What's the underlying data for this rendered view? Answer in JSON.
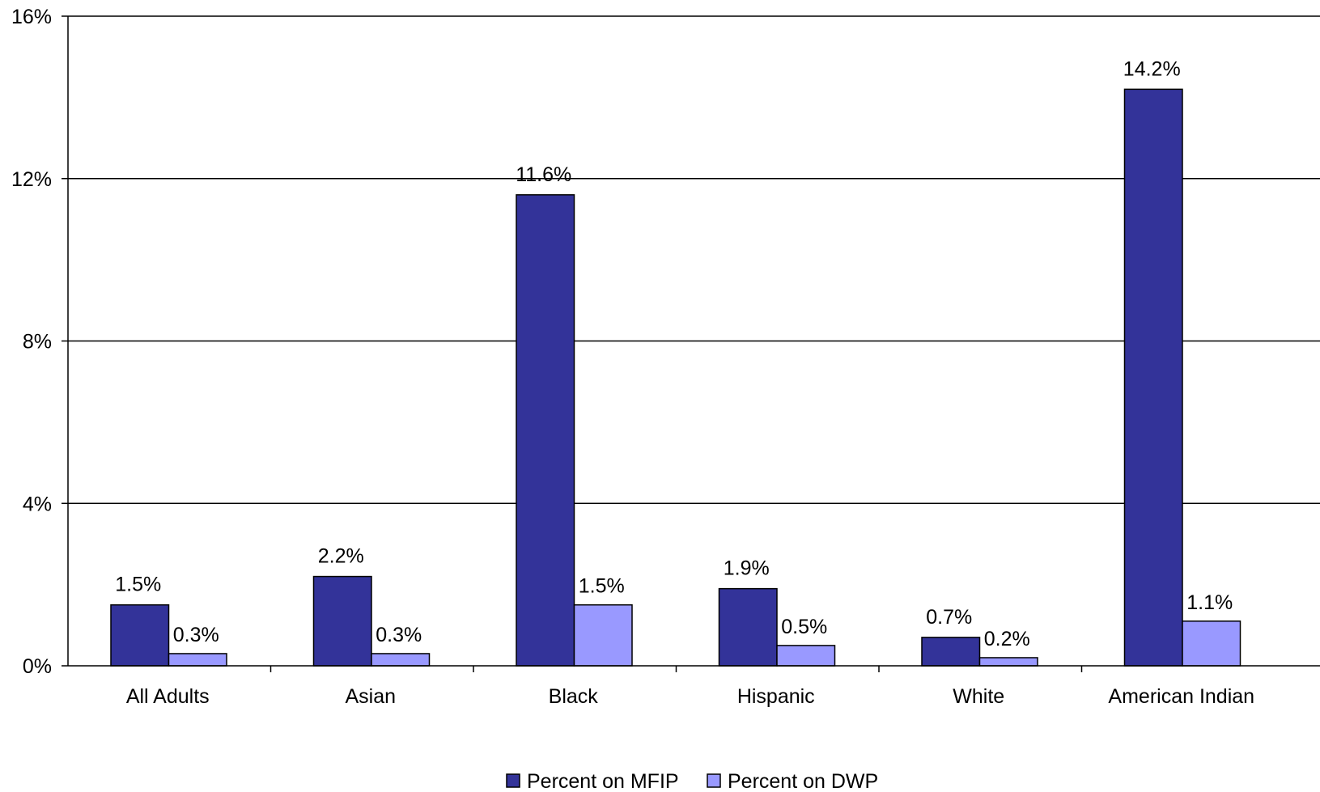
{
  "chart_data": {
    "type": "bar",
    "categories": [
      "All Adults",
      "Asian",
      "Black",
      "Hispanic",
      "White",
      "American Indian"
    ],
    "series": [
      {
        "name": "Percent on MFIP",
        "values": [
          1.5,
          2.2,
          11.6,
          1.9,
          0.7,
          14.2
        ],
        "labels": [
          "1.5%",
          "2.2%",
          "11.6%",
          "1.9%",
          "0.7%",
          "14.2%"
        ],
        "color": "#333399"
      },
      {
        "name": "Percent on DWP",
        "values": [
          0.3,
          0.3,
          1.5,
          0.5,
          0.2,
          1.1
        ],
        "labels": [
          "0.3%",
          "0.3%",
          "1.5%",
          "0.5%",
          "0.2%",
          "1.1%"
        ],
        "color": "#9999ff"
      }
    ],
    "ylim": [
      0,
      16
    ],
    "yticks": [
      0,
      4,
      8,
      12,
      16
    ],
    "ytick_labels": [
      "0%",
      "4%",
      "8%",
      "12%",
      "16%"
    ],
    "grid": true,
    "legend_position": "bottom"
  }
}
